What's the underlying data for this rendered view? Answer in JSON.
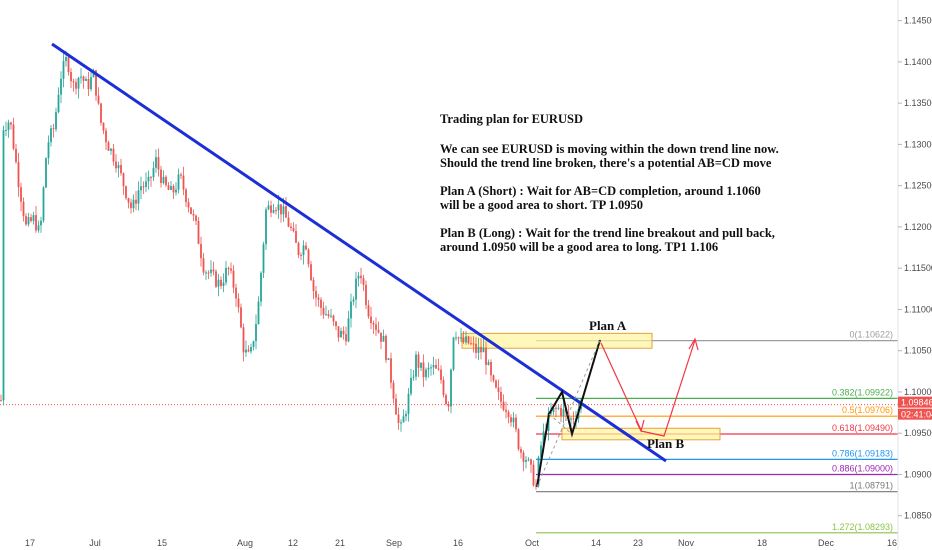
{
  "chart_data": {
    "type": "candlestick",
    "symbol_note": "EURUSD",
    "y_axis": {
      "ticks": [
        "1.14500",
        "1.14000",
        "1.13500",
        "1.13000",
        "1.12500",
        "1.12000",
        "1.11500",
        "1.11000",
        "1.10500",
        "1.10000",
        "1.09500",
        "1.09000",
        "1.08500"
      ],
      "ylim": [
        1.0823,
        1.1475
      ]
    },
    "x_axis": {
      "ticks": [
        "17",
        "Jul",
        "15",
        "Aug",
        "12",
        "21",
        "Sep",
        "16",
        "Oct",
        "14",
        "23",
        "Nov",
        "18",
        "Dec",
        "16"
      ]
    },
    "price_tags": {
      "current_price": "1.09846",
      "countdown": "02:41:04"
    },
    "fib_levels": [
      {
        "label": "0(1.10622)",
        "price": 1.10622,
        "color": "#9e9e9e"
      },
      {
        "label": "0.382(1.09922)",
        "price": 1.09922,
        "color": "#4caf50"
      },
      {
        "label": "0.5(1.09706)",
        "price": 1.09706,
        "color": "#ff9800"
      },
      {
        "label": "0.618(1.09490)",
        "price": 1.0949,
        "color": "#f23645"
      },
      {
        "label": "0.786(1.09183)",
        "price": 1.09183,
        "color": "#2196f3"
      },
      {
        "label": "0.886(1.09000)",
        "price": 1.09,
        "color": "#9c27b0"
      },
      {
        "label": "1(1.08791)",
        "price": 1.08791,
        "color": "#787878"
      },
      {
        "label": "1.272(1.08293)",
        "price": 1.08293,
        "color": "#8bc34a"
      }
    ],
    "annotations": {
      "plan_a": "Plan A",
      "plan_b": "Plan B",
      "note_lines": [
        "Trading plan for EURUSD",
        "",
        "We can see EURUSD is moving within the down trend line now.",
        "Should the trend line broken, there's a potential AB=CD move",
        "",
        "Plan A (Short) : Wait for AB=CD completion, around 1.1060",
        "will be a good area to short. TP 1.0950",
        "",
        "Plan B (Long) : Wait for the trend line breakout and pull back,",
        "around 1.0950 will be a good area to long. TP1  1.106"
      ]
    },
    "colors": {
      "bull": "#26a69a",
      "bear": "#ef5350",
      "trend_line": "#1c2fd6",
      "arrows": "#f23645",
      "zone": "#fff59d"
    }
  }
}
